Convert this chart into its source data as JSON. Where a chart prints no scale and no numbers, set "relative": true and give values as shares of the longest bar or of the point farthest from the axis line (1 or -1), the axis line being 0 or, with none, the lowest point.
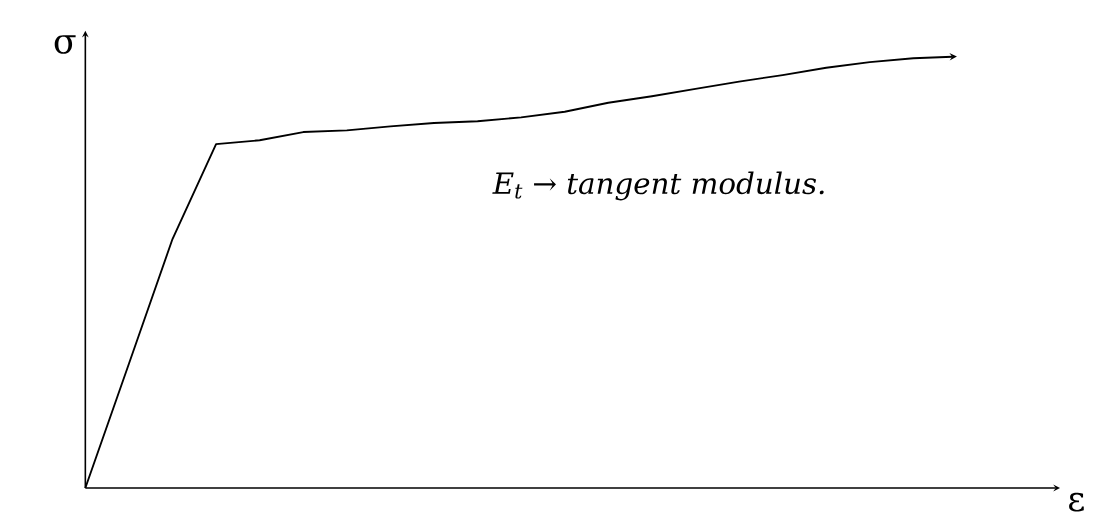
{
  "chart_data": {
    "type": "line",
    "relative": true,
    "xlabel": "ε",
    "ylabel": "σ",
    "color": "#000000",
    "categories": [
      null,
      null,
      null,
      null,
      null,
      null,
      null,
      null,
      null,
      null,
      null,
      null,
      null,
      null,
      null,
      null,
      null,
      null,
      null,
      null,
      null
    ],
    "values": [
      0,
      0.288,
      0.577,
      0.797,
      0.806,
      0.825,
      0.829,
      0.838,
      0.846,
      0.85,
      0.859,
      0.872,
      0.893,
      0.908,
      0.925,
      0.942,
      0.957,
      0.974,
      0.987,
      0.996,
      1
    ],
    "annotations": [
      "E$_{t}$ → tangent modulus."
    ],
    "marker": "none",
    "line_style": "solid"
  }
}
